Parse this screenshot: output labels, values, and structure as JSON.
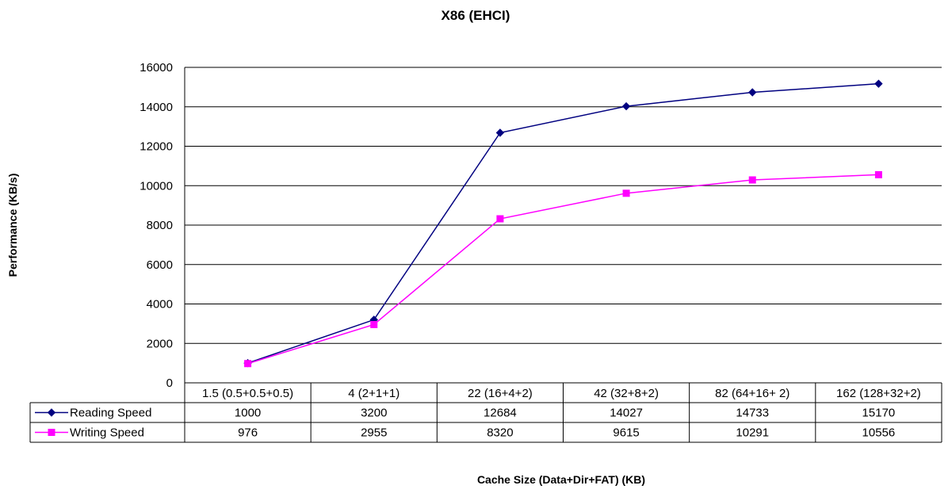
{
  "chart_data": {
    "type": "line",
    "title": "X86 (EHCI)",
    "xlabel": "Cache Size (Data+Dir+FAT) (KB)",
    "ylabel": "Performance (KB/s)",
    "ylim": [
      0,
      16000
    ],
    "yticks": [
      "0",
      "2000",
      "4000",
      "6000",
      "8000",
      "10000",
      "12000",
      "14000",
      "16000"
    ],
    "grid": true,
    "legend": "data-table",
    "categories": [
      "1.5 (0.5+0.5+0.5)",
      "4 (2+1+1)",
      "22 (16+4+2)",
      "42 (32+8+2)",
      "82 (64+16+ 2)",
      "162 (128+32+2)"
    ],
    "series": [
      {
        "name": "Reading Speed",
        "color": "#000080",
        "marker": "diamond",
        "values": [
          1000,
          3200,
          12684,
          14027,
          14733,
          15170
        ],
        "labels": [
          "1000",
          "3200",
          "12684",
          "14027",
          "14733",
          "15170"
        ]
      },
      {
        "name": "Writing Speed",
        "color": "#FF00FF",
        "marker": "square",
        "values": [
          976,
          2955,
          8320,
          9615,
          10291,
          10556
        ],
        "labels": [
          "976",
          "2955",
          "8320",
          "9615",
          "10291",
          "10556"
        ]
      }
    ]
  }
}
